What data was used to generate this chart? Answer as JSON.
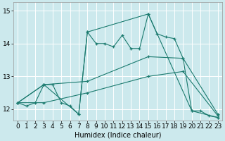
{
  "xlabel": "Humidex (Indice chaleur)",
  "bg_color": "#cce9ed",
  "grid_color": "#b0d8dc",
  "line_color": "#1a7a6e",
  "xlim": [
    -0.5,
    23.5
  ],
  "ylim": [
    11.65,
    15.25
  ],
  "yticks": [
    12,
    13,
    14,
    15
  ],
  "xticks": [
    0,
    1,
    2,
    3,
    4,
    5,
    6,
    7,
    8,
    9,
    10,
    11,
    12,
    13,
    14,
    15,
    16,
    17,
    18,
    19,
    20,
    21,
    22,
    23
  ],
  "series": [
    {
      "x": [
        0,
        1,
        2,
        3,
        4,
        5,
        6,
        7,
        8,
        9,
        10,
        11,
        12,
        13,
        14,
        15,
        16,
        17,
        18,
        19,
        20,
        21,
        22,
        23
      ],
      "y": [
        12.2,
        12.1,
        12.2,
        12.75,
        12.75,
        12.2,
        12.1,
        11.85,
        14.35,
        14.0,
        14.0,
        13.9,
        14.25,
        13.85,
        13.85,
        14.9,
        14.3,
        14.2,
        14.15,
        13.55,
        11.95,
        11.95,
        11.8,
        11.75
      ]
    },
    {
      "x": [
        0,
        3,
        7,
        8,
        15,
        20,
        23
      ],
      "y": [
        12.2,
        12.75,
        11.85,
        14.35,
        14.9,
        11.95,
        11.75
      ]
    },
    {
      "x": [
        0,
        3,
        8,
        15,
        19,
        23
      ],
      "y": [
        12.2,
        12.75,
        12.85,
        13.6,
        13.55,
        11.85
      ]
    },
    {
      "x": [
        0,
        3,
        8,
        15,
        19,
        23
      ],
      "y": [
        12.2,
        12.2,
        12.5,
        13.0,
        13.15,
        11.8
      ]
    }
  ]
}
